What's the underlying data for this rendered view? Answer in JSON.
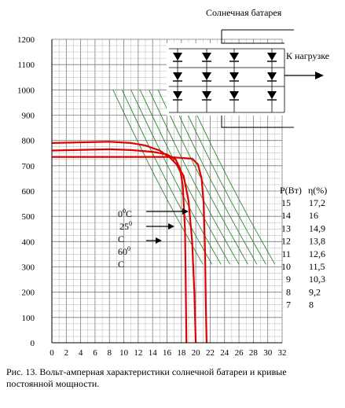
{
  "chart_data": {
    "type": "line",
    "title": "Солнечная батарея",
    "xlim": [
      0,
      32
    ],
    "ylim": [
      0,
      1200
    ],
    "x_ticks": [
      0,
      2,
      4,
      6,
      8,
      10,
      12,
      14,
      16,
      18,
      20,
      22,
      24,
      26,
      28,
      30,
      32
    ],
    "y_ticks": [
      0,
      100,
      200,
      300,
      400,
      500,
      600,
      700,
      800,
      900,
      1000,
      1100,
      1200
    ],
    "grid": true,
    "series": [
      {
        "name": "0⁰С",
        "color": "#e00000",
        "points": [
          [
            0,
            790
          ],
          [
            8,
            795
          ],
          [
            11,
            790
          ],
          [
            13,
            780
          ],
          [
            15,
            760
          ],
          [
            16.5,
            730
          ],
          [
            17.5,
            700
          ],
          [
            18.3,
            660
          ],
          [
            19,
            560
          ],
          [
            19.5,
            400
          ],
          [
            19.8,
            200
          ],
          [
            20,
            0
          ]
        ]
      },
      {
        "name": "25⁰С",
        "color": "#e00000",
        "points": [
          [
            0,
            760
          ],
          [
            8,
            765
          ],
          [
            11,
            762
          ],
          [
            14,
            755
          ],
          [
            16,
            745
          ],
          [
            17.2,
            725
          ],
          [
            17.8,
            690
          ],
          [
            18.2,
            620
          ],
          [
            18.5,
            450
          ],
          [
            18.6,
            250
          ],
          [
            18.7,
            0
          ]
        ]
      },
      {
        "name": "60⁰С",
        "color": "#e00000",
        "points": [
          [
            0,
            735
          ],
          [
            10,
            735
          ],
          [
            16,
            735
          ],
          [
            19.5,
            728
          ],
          [
            20.3,
            705
          ],
          [
            20.8,
            650
          ],
          [
            21.1,
            550
          ],
          [
            21.3,
            350
          ],
          [
            21.4,
            150
          ],
          [
            21.5,
            0
          ]
        ]
      }
    ],
    "curve_labels": [
      {
        "text": "0⁰С",
        "line1": "0",
        "sup1": "0",
        "line2": "С"
      },
      {
        "text": "25⁰С",
        "line1": "25",
        "sup1": "0",
        "line2": "С"
      },
      {
        "text": "60⁰С",
        "line1": "60",
        "sup1": "0",
        "line2": "С"
      }
    ],
    "power_table": {
      "headers": [
        "Р(Вт)",
        "η(%)"
      ],
      "rows": [
        [
          "15",
          "17,2"
        ],
        [
          "14",
          "16"
        ],
        [
          "13",
          "14,9"
        ],
        [
          "12",
          "13,8"
        ],
        [
          "11",
          "12,6"
        ],
        [
          "10",
          "11,5"
        ],
        [
          "9",
          "10,3"
        ],
        [
          "8",
          "9,2"
        ],
        [
          "7",
          "8"
        ]
      ]
    },
    "hyperbola_color": "#2e8b2e",
    "hyperbola_power_values": [
      15,
      14,
      13,
      12,
      11,
      10,
      9,
      8,
      7
    ],
    "inset_label": "К нагрузке"
  },
  "caption": "Рис. 13. Вольт-амперная характеристики солнечной батареи и кривые постоянной мощности."
}
